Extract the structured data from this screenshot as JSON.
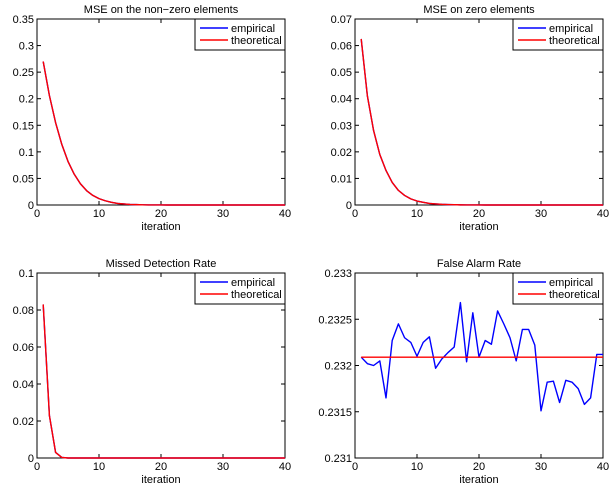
{
  "chart_data": [
    {
      "type": "line",
      "title": "MSE on the non−zero elements",
      "xlabel": "iteration",
      "ylabel": "",
      "xlim": [
        0,
        40
      ],
      "ylim": [
        0,
        0.35
      ],
      "xticks": [
        0,
        10,
        20,
        30,
        40
      ],
      "xtick_labels": [
        "0",
        "10",
        "20",
        "30",
        "40"
      ],
      "yticks": [
        0,
        0.05,
        0.1,
        0.15,
        0.2,
        0.25,
        0.3,
        0.35
      ],
      "ytick_labels": [
        "0",
        "0.05",
        "0.1",
        "0.15",
        "0.2",
        "0.25",
        "0.3",
        "0.35"
      ],
      "legend": "top-right",
      "series": [
        {
          "name": "empirical",
          "color": "#0000ff",
          "x": [
            1,
            2,
            3,
            4,
            5,
            6,
            7,
            8,
            9,
            10,
            11,
            12,
            13,
            14,
            15,
            16,
            17,
            18,
            19,
            20,
            21,
            22,
            23,
            24,
            25,
            26,
            27,
            28,
            29,
            30,
            31,
            32,
            33,
            34,
            35,
            36,
            37,
            38,
            39,
            40
          ],
          "y": [
            0.27,
            0.206,
            0.155,
            0.114,
            0.082,
            0.058,
            0.04,
            0.027,
            0.018,
            0.012,
            0.008,
            0.005,
            0.003,
            0.002,
            0.001,
            0.0007,
            0.0004,
            0.0002,
            0.0001,
            6e-05,
            0,
            0,
            0,
            0,
            0,
            0,
            0,
            0,
            0,
            0,
            0,
            0,
            0,
            0,
            0,
            0,
            0,
            0,
            0,
            0
          ]
        },
        {
          "name": "theoretical",
          "color": "#ff0000",
          "x": [
            1,
            2,
            3,
            4,
            5,
            6,
            7,
            8,
            9,
            10,
            11,
            12,
            13,
            14,
            15,
            16,
            17,
            18,
            19,
            20,
            21,
            22,
            23,
            24,
            25,
            26,
            27,
            28,
            29,
            30,
            31,
            32,
            33,
            34,
            35,
            36,
            37,
            38,
            39,
            40
          ],
          "y": [
            0.27,
            0.206,
            0.155,
            0.114,
            0.082,
            0.058,
            0.04,
            0.027,
            0.018,
            0.012,
            0.008,
            0.005,
            0.003,
            0.002,
            0.001,
            0.0007,
            0.0004,
            0.0002,
            0.0001,
            6e-05,
            0,
            0,
            0,
            0,
            0,
            0,
            0,
            0,
            0,
            0,
            0,
            0,
            0,
            0,
            0,
            0,
            0,
            0,
            0,
            0
          ]
        }
      ]
    },
    {
      "type": "line",
      "title": "MSE on zero elements",
      "xlabel": "iteration",
      "ylabel": "",
      "xlim": [
        0,
        40
      ],
      "ylim": [
        0,
        0.07
      ],
      "xticks": [
        0,
        10,
        20,
        30,
        40
      ],
      "xtick_labels": [
        "0",
        "10",
        "20",
        "30",
        "40"
      ],
      "yticks": [
        0,
        0.01,
        0.02,
        0.03,
        0.04,
        0.05,
        0.06,
        0.07
      ],
      "ytick_labels": [
        "0",
        "0.01",
        "0.02",
        "0.03",
        "0.04",
        "0.05",
        "0.06",
        "0.07"
      ],
      "legend": "top-right",
      "series": [
        {
          "name": "empirical",
          "color": "#0000ff",
          "x": [
            1,
            2,
            3,
            4,
            5,
            6,
            7,
            8,
            9,
            10,
            11,
            12,
            13,
            14,
            15,
            16,
            17,
            18,
            19,
            20,
            21,
            22,
            23,
            24,
            25,
            26,
            27,
            28,
            29,
            30,
            31,
            32,
            33,
            34,
            35,
            36,
            37,
            38,
            39,
            40
          ],
          "y": [
            0.0625,
            0.041,
            0.028,
            0.019,
            0.013,
            0.0085,
            0.0055,
            0.0036,
            0.0023,
            0.0015,
            0.001,
            0.0006,
            0.0004,
            0.00025,
            0.00015,
            0.0001,
            5e-05,
            3e-05,
            2e-05,
            1e-05,
            0,
            0,
            0,
            0,
            0,
            0,
            0,
            0,
            0,
            0,
            0,
            0,
            0,
            0,
            0,
            0,
            0,
            0,
            0,
            0
          ]
        },
        {
          "name": "theoretical",
          "color": "#ff0000",
          "x": [
            1,
            2,
            3,
            4,
            5,
            6,
            7,
            8,
            9,
            10,
            11,
            12,
            13,
            14,
            15,
            16,
            17,
            18,
            19,
            20,
            21,
            22,
            23,
            24,
            25,
            26,
            27,
            28,
            29,
            30,
            31,
            32,
            33,
            34,
            35,
            36,
            37,
            38,
            39,
            40
          ],
          "y": [
            0.0625,
            0.041,
            0.028,
            0.019,
            0.013,
            0.0085,
            0.0055,
            0.0036,
            0.0023,
            0.0015,
            0.001,
            0.0006,
            0.0004,
            0.00025,
            0.00015,
            0.0001,
            5e-05,
            3e-05,
            2e-05,
            1e-05,
            0,
            0,
            0,
            0,
            0,
            0,
            0,
            0,
            0,
            0,
            0,
            0,
            0,
            0,
            0,
            0,
            0,
            0,
            0,
            0
          ]
        }
      ]
    },
    {
      "type": "line",
      "title": "Missed Detection Rate",
      "xlabel": "iteration",
      "ylabel": "",
      "xlim": [
        0,
        40
      ],
      "ylim": [
        0,
        0.1
      ],
      "xticks": [
        0,
        10,
        20,
        30,
        40
      ],
      "xtick_labels": [
        "0",
        "10",
        "20",
        "30",
        "40"
      ],
      "yticks": [
        0,
        0.02,
        0.04,
        0.06,
        0.08,
        0.1
      ],
      "ytick_labels": [
        "0",
        "0.02",
        "0.04",
        "0.06",
        "0.08",
        "0.1"
      ],
      "legend": "top-right",
      "series": [
        {
          "name": "empirical",
          "color": "#0000ff",
          "x": [
            1,
            2,
            3,
            4,
            5,
            6,
            7,
            8,
            9,
            10,
            11,
            12,
            13,
            14,
            15,
            16,
            17,
            18,
            19,
            20,
            21,
            22,
            23,
            24,
            25,
            26,
            27,
            28,
            29,
            30,
            31,
            32,
            33,
            34,
            35,
            36,
            37,
            38,
            39,
            40
          ],
          "y": [
            0.083,
            0.023,
            0.003,
            0.0003,
            0,
            0,
            0,
            0,
            0,
            0,
            0,
            0,
            0,
            0,
            0,
            0,
            0,
            0,
            0,
            0,
            0,
            0,
            0,
            0,
            0,
            0,
            0,
            0,
            0,
            0,
            0,
            0,
            0,
            0,
            0,
            0,
            0,
            0,
            0,
            0
          ]
        },
        {
          "name": "theoretical",
          "color": "#ff0000",
          "x": [
            1,
            2,
            3,
            4,
            5,
            6,
            7,
            8,
            9,
            10,
            11,
            12,
            13,
            14,
            15,
            16,
            17,
            18,
            19,
            20,
            21,
            22,
            23,
            24,
            25,
            26,
            27,
            28,
            29,
            30,
            31,
            32,
            33,
            34,
            35,
            36,
            37,
            38,
            39,
            40
          ],
          "y": [
            0.083,
            0.023,
            0.003,
            0.0003,
            0,
            0,
            0,
            0,
            0,
            0,
            0,
            0,
            0,
            0,
            0,
            0,
            0,
            0,
            0,
            0,
            0,
            0,
            0,
            0,
            0,
            0,
            0,
            0,
            0,
            0,
            0,
            0,
            0,
            0,
            0,
            0,
            0,
            0,
            0,
            0
          ]
        }
      ]
    },
    {
      "type": "line",
      "title": "False Alarm Rate",
      "xlabel": "iteration",
      "ylabel": "",
      "xlim": [
        0,
        40
      ],
      "ylim": [
        0.231,
        0.233
      ],
      "xticks": [
        0,
        10,
        20,
        30,
        40
      ],
      "xtick_labels": [
        "0",
        "10",
        "20",
        "30",
        "40"
      ],
      "yticks": [
        0.231,
        0.2315,
        0.232,
        0.2325,
        0.233
      ],
      "ytick_labels": [
        "0.231",
        "0.2315",
        "0.232",
        "0.2325",
        "0.233"
      ],
      "legend": "top-right",
      "series": [
        {
          "name": "empirical",
          "color": "#0000ff",
          "x": [
            1,
            2,
            3,
            4,
            5,
            6,
            7,
            8,
            9,
            10,
            11,
            12,
            13,
            14,
            15,
            16,
            17,
            18,
            19,
            20,
            21,
            22,
            23,
            24,
            25,
            26,
            27,
            28,
            29,
            30,
            31,
            32,
            33,
            34,
            35,
            36,
            37,
            38,
            39,
            40
          ],
          "y": [
            0.23209,
            0.23202,
            0.232,
            0.23205,
            0.23165,
            0.23227,
            0.23245,
            0.2323,
            0.23225,
            0.2321,
            0.23225,
            0.23231,
            0.23197,
            0.23207,
            0.23214,
            0.2322,
            0.23268,
            0.23204,
            0.23257,
            0.23209,
            0.23227,
            0.23223,
            0.23259,
            0.23245,
            0.2323,
            0.23205,
            0.23239,
            0.23239,
            0.23222,
            0.23151,
            0.23182,
            0.23183,
            0.2316,
            0.23184,
            0.23182,
            0.23175,
            0.23158,
            0.23165,
            0.23212,
            0.23212
          ]
        },
        {
          "name": "theoretical",
          "color": "#ff0000",
          "x": [
            1,
            40
          ],
          "y": [
            0.23209,
            0.23209
          ]
        }
      ]
    }
  ]
}
